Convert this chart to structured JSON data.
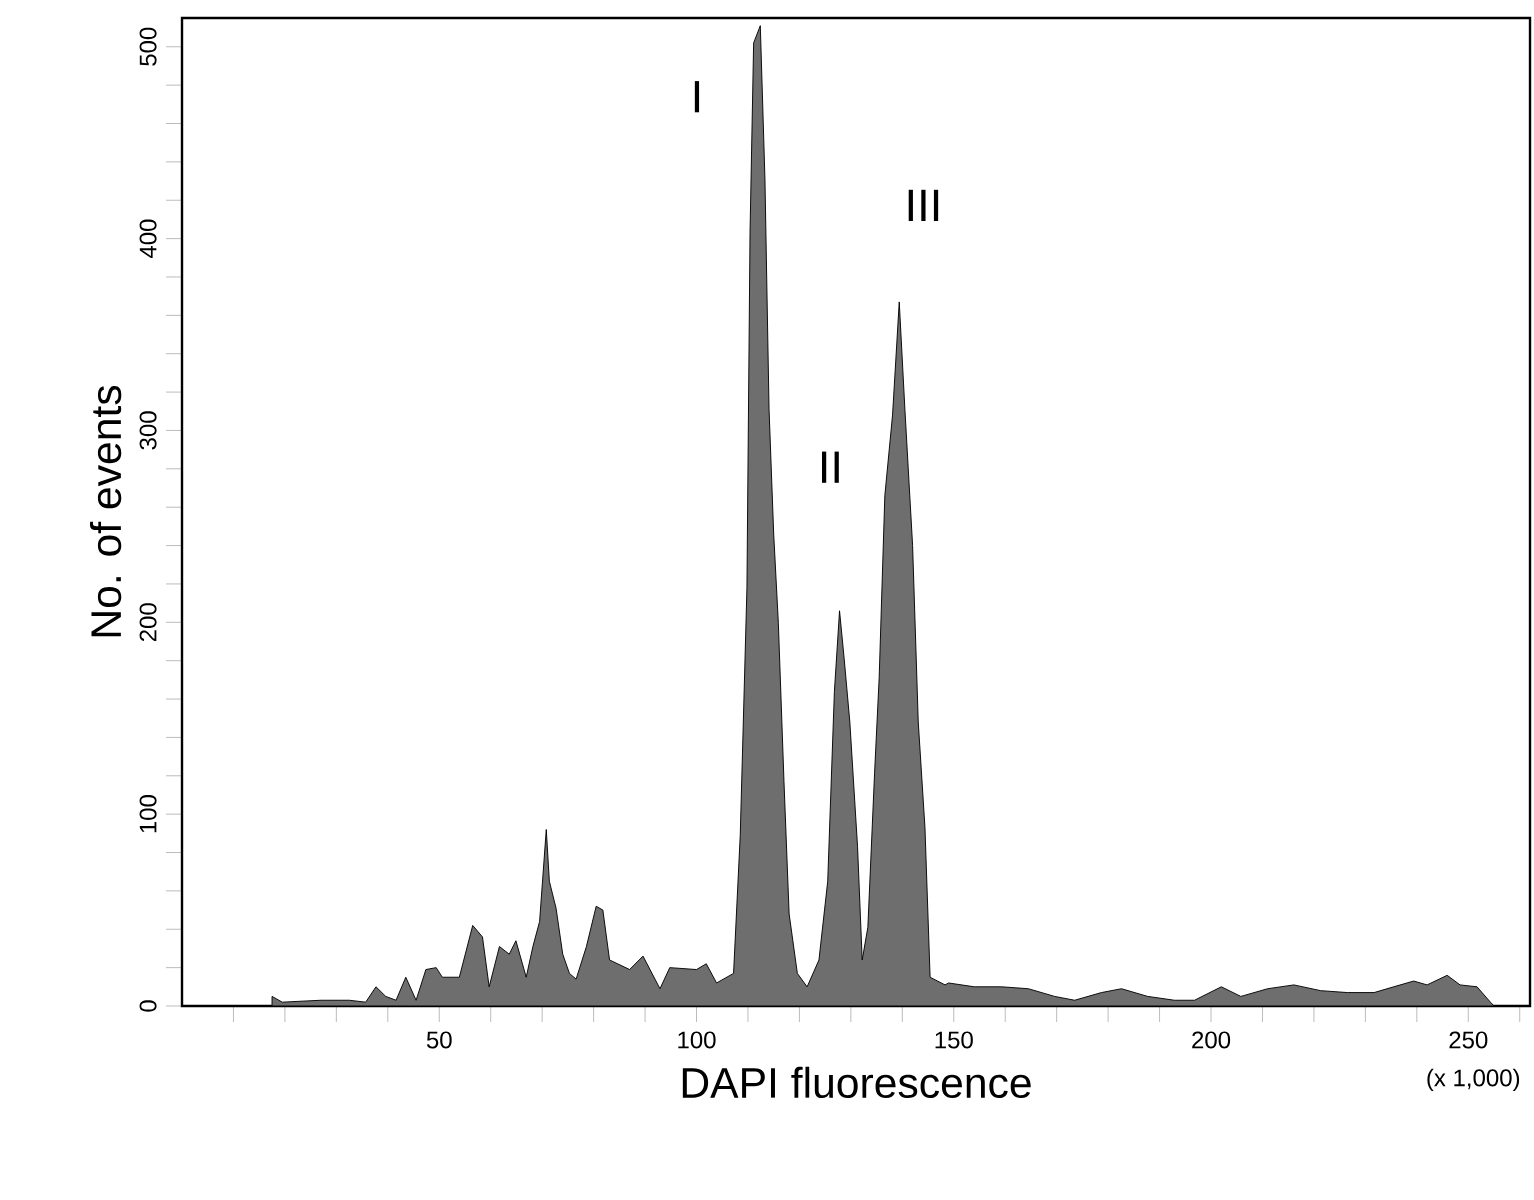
{
  "chart_data": {
    "type": "area",
    "xlabel": "DAPI fluorescence",
    "ylabel": "No. of events",
    "x": [
      17.5,
      19.5,
      27,
      32.5,
      35.7,
      37.7,
      39.6,
      41.6,
      43.5,
      45.5,
      47.4,
      49.4,
      50.6,
      53.9,
      56.5,
      58.4,
      59.7,
      61.7,
      63.6,
      64.9,
      66.9,
      68.2,
      69.5,
      70.8,
      71.4,
      72.7,
      74,
      75.3,
      76.6,
      78.6,
      80.5,
      81.8,
      83.1,
      87,
      89.6,
      92.9,
      94.8,
      100,
      101.9,
      103.9,
      107.2,
      108.5,
      109.8,
      110.4,
      111.1,
      112.4,
      113.3,
      114.1,
      115,
      115.9,
      117,
      118,
      119.6,
      121.5,
      123.8,
      125.5,
      126.8,
      127.8,
      128.7,
      129.8,
      131.3,
      132.2,
      133.3,
      134.6,
      135.5,
      136.6,
      138.1,
      139.4,
      140.5,
      142,
      143.1,
      144.4,
      145.4,
      148.3,
      149,
      154,
      159.3,
      164.5,
      169.6,
      173.5,
      178.7,
      182.6,
      187.7,
      192.9,
      196.8,
      202,
      205.8,
      211,
      216.1,
      221.3,
      226.5,
      231.7,
      235.5,
      239.4,
      242,
      245.9,
      248.4,
      251.7,
      254.3,
      255
    ],
    "values": [
      5,
      2,
      3,
      3,
      2,
      10,
      5,
      3,
      15,
      3,
      19,
      20,
      15,
      15,
      42,
      36,
      10,
      31,
      27,
      34,
      15,
      31,
      44,
      92,
      65,
      51,
      27,
      17,
      14,
      31,
      52,
      50,
      24,
      19,
      26,
      9,
      20,
      19,
      22,
      12,
      17,
      89,
      218,
      403,
      502,
      511,
      431,
      311,
      246,
      200,
      117,
      48,
      17,
      10,
      24,
      65,
      164,
      206,
      181,
      148,
      83,
      24,
      41,
      121,
      171,
      266,
      308,
      367,
      311,
      240,
      148,
      93,
      15,
      11,
      12,
      10,
      10,
      9,
      5,
      3,
      7,
      9,
      5,
      3,
      3,
      10,
      5,
      9,
      11,
      8,
      7,
      7,
      10,
      13,
      11,
      16,
      11,
      10,
      2,
      0
    ],
    "color": "#6e6e6e",
    "xlim": [
      0,
      262
    ],
    "ylim": [
      0,
      515
    ],
    "xticks": [
      {
        "value": 10,
        "label": null
      },
      {
        "value": 20,
        "label": null
      },
      {
        "value": 30,
        "label": null
      },
      {
        "value": 40,
        "label": null
      },
      50,
      {
        "value": 60,
        "label": null
      },
      {
        "value": 70,
        "label": null
      },
      {
        "value": 80,
        "label": null
      },
      {
        "value": 90,
        "label": null
      },
      100,
      {
        "value": 110,
        "label": null
      },
      {
        "value": 120,
        "label": null
      },
      {
        "value": 130,
        "label": null
      },
      {
        "value": 140,
        "label": null
      },
      150,
      {
        "value": 160,
        "label": null
      },
      {
        "value": 170,
        "label": null
      },
      {
        "value": 180,
        "label": null
      },
      {
        "value": 190,
        "label": null
      },
      200,
      {
        "value": 210,
        "label": null
      },
      {
        "value": 220,
        "label": null
      },
      {
        "value": 230,
        "label": null
      },
      {
        "value": 240,
        "label": null
      },
      250,
      {
        "value": 260,
        "label": null
      }
    ],
    "yticks": [
      0,
      {
        "value": 20,
        "label": null
      },
      {
        "value": 40,
        "label": null
      },
      {
        "value": 60,
        "label": null
      },
      {
        "value": 80,
        "label": null
      },
      100,
      {
        "value": 120,
        "label": null
      },
      {
        "value": 140,
        "label": null
      },
      {
        "value": 160,
        "label": null
      },
      {
        "value": 180,
        "label": null
      },
      200,
      {
        "value": 220,
        "label": null
      },
      {
        "value": 240,
        "label": null
      },
      {
        "value": 260,
        "label": null
      },
      {
        "value": 280,
        "label": null
      },
      300,
      {
        "value": 320,
        "label": null
      },
      {
        "value": 340,
        "label": null
      },
      {
        "value": 360,
        "label": null
      },
      {
        "value": 380,
        "label": null
      },
      400,
      {
        "value": 420,
        "label": null
      },
      {
        "value": 440,
        "label": null
      },
      {
        "value": 460,
        "label": null
      },
      {
        "value": 480,
        "label": null
      },
      500
    ],
    "annotations": [
      "I",
      "II",
      "III",
      "(x 1,000)"
    ],
    "grid": false
  }
}
